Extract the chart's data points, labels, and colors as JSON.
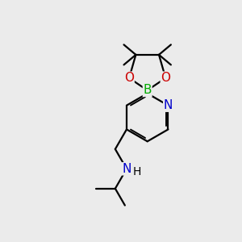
{
  "bg_color": "#ebebeb",
  "atom_colors": {
    "C": "#000000",
    "N": "#0000cc",
    "O": "#cc0000",
    "B": "#00aa00",
    "H": "#000000"
  },
  "bond_color": "#000000",
  "bond_width": 1.6,
  "font_size": 10,
  "font_size_label": 10
}
